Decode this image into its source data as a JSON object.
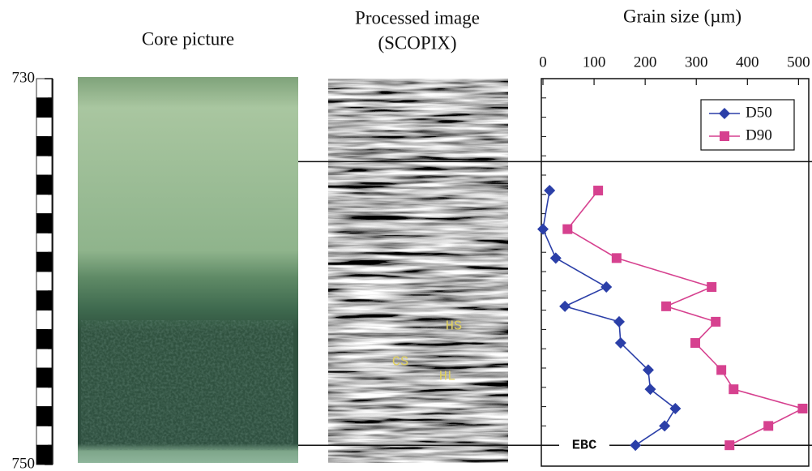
{
  "chart_data": {
    "type": "line",
    "panel_titles": [
      "Core picture",
      "Processed image",
      "(SCOPIX)"
    ],
    "x_label": "Grain size (µm)",
    "xlim": [
      0,
      520
    ],
    "xticks": [
      0,
      100,
      200,
      300,
      400,
      500
    ],
    "ylim": [
      730,
      750
    ],
    "yticks": [
      730,
      750
    ],
    "depth": [
      735.8,
      737.8,
      739.3,
      740.8,
      741.8,
      742.6,
      743.7,
      745.1,
      746.1,
      747.1,
      748.0,
      749.0
    ],
    "series": [
      {
        "name": "D50",
        "color": "#2b3fa8",
        "marker": "diamond",
        "values": [
          13,
          0,
          25,
          124,
          43,
          149,
          152,
          206,
          210,
          259,
          238,
          181
        ]
      },
      {
        "name": "D90",
        "color": "#d6418f",
        "marker": "square",
        "values": [
          108,
          48,
          144,
          330,
          241,
          338,
          298,
          349,
          373,
          508,
          441,
          365
        ]
      }
    ],
    "boundary_depths": [
      734.3,
      749.0
    ],
    "annotations": [
      "EBC",
      "HS",
      "CS",
      "HL"
    ],
    "legend": "upper right"
  }
}
